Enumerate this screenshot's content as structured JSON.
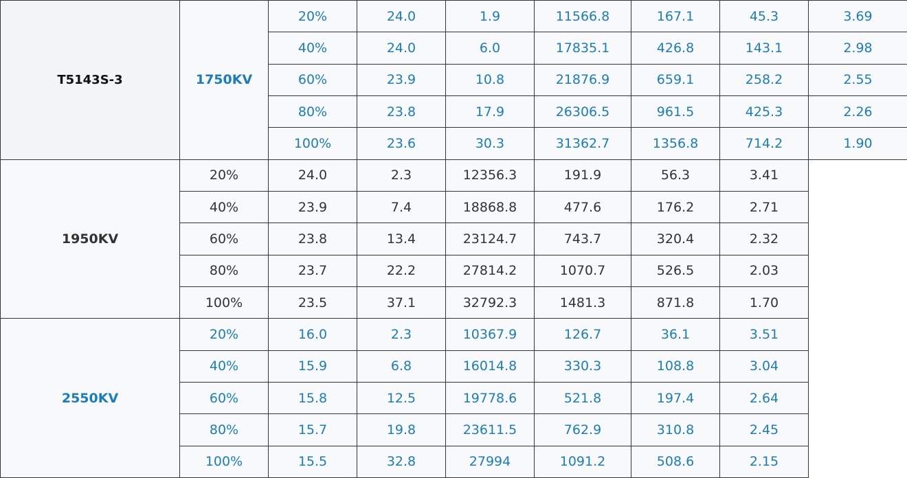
{
  "table": {
    "model": "T5143S-3",
    "groups": [
      {
        "voltage": "1750KV",
        "rows": [
          [
            "20%",
            "24.0",
            "1.9",
            "11566.8",
            "167.1",
            "45.3",
            "3.69"
          ],
          [
            "40%",
            "24.0",
            "6.0",
            "17835.1",
            "426.8",
            "143.1",
            "2.98"
          ],
          [
            "60%",
            "23.9",
            "10.8",
            "21876.9",
            "659.1",
            "258.2",
            "2.55"
          ],
          [
            "80%",
            "23.8",
            "17.9",
            "26306.5",
            "961.5",
            "425.3",
            "2.26"
          ],
          [
            "100%",
            "23.6",
            "30.3",
            "31362.7",
            "1356.8",
            "714.2",
            "1.90"
          ]
        ]
      },
      {
        "voltage": "1950KV",
        "rows": [
          [
            "20%",
            "24.0",
            "2.3",
            "12356.3",
            "191.9",
            "56.3",
            "3.41"
          ],
          [
            "40%",
            "23.9",
            "7.4",
            "18868.8",
            "477.6",
            "176.2",
            "2.71"
          ],
          [
            "60%",
            "23.8",
            "13.4",
            "23124.7",
            "743.7",
            "320.4",
            "2.32"
          ],
          [
            "80%",
            "23.7",
            "22.2",
            "27814.2",
            "1070.7",
            "526.5",
            "2.03"
          ],
          [
            "100%",
            "23.5",
            "37.1",
            "32792.3",
            "1481.3",
            "871.8",
            "1.70"
          ]
        ]
      },
      {
        "voltage": "2550KV",
        "rows": [
          [
            "20%",
            "16.0",
            "2.3",
            "10367.9",
            "126.7",
            "36.1",
            "3.51"
          ],
          [
            "40%",
            "15.9",
            "6.8",
            "16014.8",
            "330.3",
            "108.8",
            "3.04"
          ],
          [
            "60%",
            "15.8",
            "12.5",
            "19778.6",
            "521.8",
            "197.4",
            "2.64"
          ],
          [
            "80%",
            "15.7",
            "19.8",
            "23611.5",
            "762.9",
            "310.8",
            "2.45"
          ],
          [
            "100%",
            "15.5",
            "32.8",
            "27994",
            "1091.2",
            "508.6",
            "2.15"
          ]
        ]
      }
    ]
  }
}
